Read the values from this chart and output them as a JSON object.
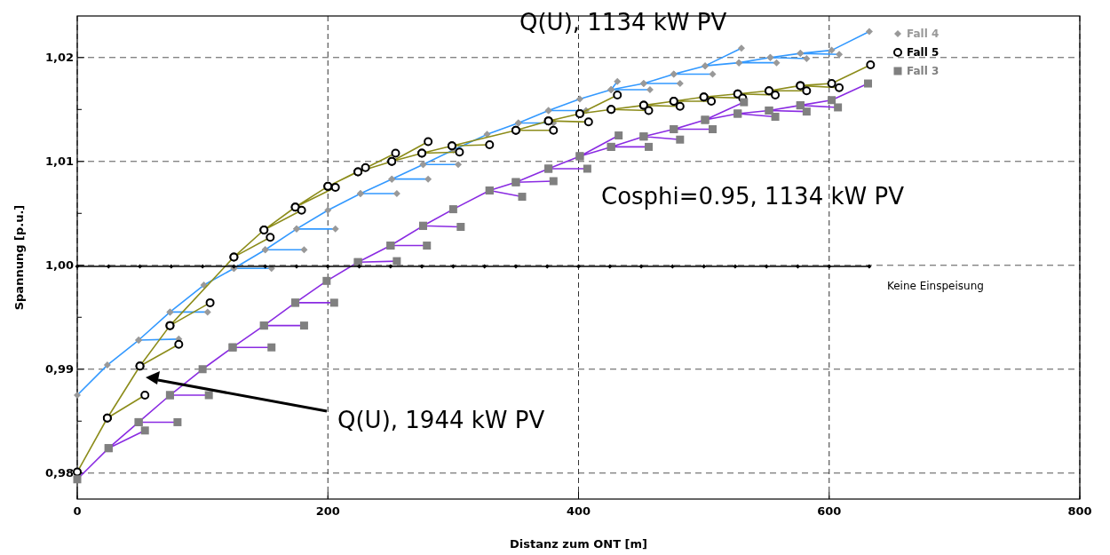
{
  "chart_data": {
    "type": "line",
    "xlabel": "Distanz zum ONT [m]",
    "ylabel": "Spannung [p.u.]",
    "xlim": [
      0,
      800
    ],
    "xticks": [
      0,
      200,
      400,
      600,
      800
    ],
    "ylim": [
      0.9775,
      1.024
    ],
    "yticks": [
      {
        "value": 0.98,
        "label": "0,98"
      },
      {
        "value": 0.985,
        "label": null
      },
      {
        "value": 0.99,
        "label": "0,99"
      },
      {
        "value": 0.995,
        "label": null
      },
      {
        "value": 1.0,
        "label": "1,00"
      },
      {
        "value": 1.005,
        "label": null
      },
      {
        "value": 1.01,
        "label": "1,01"
      },
      {
        "value": 1.015,
        "label": null
      },
      {
        "value": 1.02,
        "label": "1,02"
      }
    ],
    "grid": true,
    "legend": "top right",
    "line_style": "solid",
    "annotations": [
      "Q(U), 1134 kW PV",
      "Cosphi=0.95, 1134 kW PV",
      "Q(U), 1944 kW PV"
    ],
    "series": [
      {
        "name": "Fall 4",
        "color": "#3399ff",
        "marker": "diamond",
        "x": [
          0,
          24,
          49,
          74,
          101,
          125,
          150,
          175,
          200,
          226,
          251,
          276,
          300,
          327,
          352,
          376,
          401,
          426,
          452,
          476,
          501,
          528,
          553,
          577,
          602,
          632,
          577,
          608,
          553,
          582,
          528,
          558,
          501,
          530,
          476,
          507,
          452,
          481,
          426,
          457,
          426,
          431,
          376,
          406,
          352,
          380,
          276,
          304,
          251,
          280,
          226,
          255,
          175,
          206,
          150,
          181,
          125,
          155,
          74,
          104,
          49,
          81
        ],
        "values": [
          0.9875,
          0.9904,
          0.9928,
          0.9955,
          0.9981,
          0.9997,
          1.0015,
          1.0035,
          1.0053,
          1.0069,
          1.0083,
          1.0097,
          1.0111,
          1.0126,
          1.0137,
          1.0149,
          1.016,
          1.0169,
          1.0175,
          1.0184,
          1.0192,
          1.0195,
          1.02,
          1.0204,
          1.0207,
          1.0225,
          1.0204,
          1.0203,
          1.02,
          1.0199,
          1.0195,
          1.0195,
          1.0192,
          1.0209,
          1.0184,
          1.0184,
          1.0175,
          1.0175,
          1.0169,
          1.0169,
          1.0169,
          1.0177,
          1.0149,
          1.0149,
          1.0137,
          1.0137,
          1.0097,
          1.0097,
          1.0083,
          1.0083,
          1.0069,
          1.0069,
          1.0035,
          1.0035,
          1.0015,
          1.0015,
          0.9997,
          0.9997,
          0.9955,
          0.9955,
          0.9928,
          0.9929
        ],
        "colors": [
          "#999999",
          "#999999",
          "#999999",
          "#999999",
          "#999999",
          "#999999",
          "#999999",
          "#999999",
          "#999999",
          "#999999",
          "#999999",
          "#999999",
          "#999999",
          "#999999",
          "#999999",
          "#999999",
          "#999999",
          "#999999",
          "#999999",
          "#999999",
          "#999999",
          "#999999",
          "#999999",
          "#999999",
          "#999999",
          "#999999",
          "#999999",
          "#999999",
          "#999999",
          "#999999",
          "#999999",
          "#999999",
          "#999999",
          "#999999",
          "#999999",
          "#999999",
          "#999999",
          "#999999",
          "#999999",
          "#999999",
          "#999999",
          "#999999",
          "#999999",
          "#999999",
          "#999999",
          "#999999",
          "#999999",
          "#999999",
          "#999999",
          "#999999",
          "#999999",
          "#999999",
          "#999999",
          "#999999",
          "#999999",
          "#999999",
          "#999999",
          "#999999",
          "#999999",
          "#999999",
          "#999999",
          "#999999"
        ]
      },
      {
        "name": "Fall 5",
        "color": "#8c8c1a",
        "marker": "circle",
        "x": [
          0,
          24,
          50,
          74,
          125,
          149,
          174,
          200,
          224,
          251,
          275,
          299,
          350,
          376,
          401,
          426,
          452,
          476,
          500,
          527,
          552,
          577,
          602,
          633,
          577,
          608,
          552,
          582,
          527,
          557,
          500,
          531,
          476,
          506,
          452,
          481,
          426,
          456,
          401,
          431,
          376,
          408,
          350,
          380,
          299,
          329,
          275,
          305,
          251,
          280,
          224,
          254,
          200,
          230,
          174,
          206,
          149,
          179,
          125,
          154,
          74,
          106,
          50,
          81,
          24,
          54
        ],
        "values": [
          0.9801,
          0.9853,
          0.9903,
          0.9942,
          1.0008,
          1.0034,
          1.0056,
          1.0076,
          1.009,
          1.01,
          1.0108,
          1.0115,
          1.013,
          1.0139,
          1.0146,
          1.015,
          1.0154,
          1.0158,
          1.0162,
          1.0165,
          1.0168,
          1.0173,
          1.0175,
          1.0193,
          1.0173,
          1.0171,
          1.0168,
          1.0168,
          1.0165,
          1.0164,
          1.0162,
          1.0161,
          1.0158,
          1.0158,
          1.0154,
          1.0153,
          1.015,
          1.0149,
          1.0146,
          1.0164,
          1.0139,
          1.0138,
          1.013,
          1.013,
          1.0115,
          1.0116,
          1.0108,
          1.0109,
          1.01,
          1.0119,
          1.009,
          1.0108,
          1.0076,
          1.0094,
          1.0056,
          1.0075,
          1.0034,
          1.0053,
          1.0008,
          1.0027,
          0.9942,
          0.9964,
          0.9903,
          0.9924,
          0.9853,
          0.9875
        ],
        "colors": [
          "#000000",
          "#000000",
          "#000000",
          "#000000",
          "#000000",
          "#000000",
          "#000000",
          "#000000",
          "#000000",
          "#000000",
          "#000000",
          "#000000",
          "#000000",
          "#000000",
          "#000000",
          "#000000",
          "#000000",
          "#000000",
          "#000000",
          "#000000",
          "#000000",
          "#000000",
          "#000000",
          "#000000",
          "#000000",
          "#000000",
          "#000000",
          "#000000",
          "#000000",
          "#000000",
          "#000000",
          "#000000",
          "#000000",
          "#000000",
          "#000000",
          "#000000",
          "#000000",
          "#000000",
          "#000000",
          "#000000",
          "#000000",
          "#000000",
          "#000000",
          "#000000",
          "#000000",
          "#000000",
          "#000000",
          "#000000",
          "#000000",
          "#000000",
          "#000000",
          "#000000",
          "#000000",
          "#000000",
          "#000000",
          "#000000",
          "#000000",
          "#000000",
          "#000000",
          "#000000",
          "#000000",
          "#000000",
          "#000000",
          "#000000",
          "#000000",
          "#000000"
        ]
      },
      {
        "name": "Fall 3",
        "color": "#8a2be2",
        "marker": "square",
        "x": [
          0,
          25,
          49,
          74,
          100,
          124,
          149,
          174,
          199,
          224,
          250,
          276,
          300,
          329,
          350,
          376,
          401,
          426,
          452,
          476,
          501,
          527,
          552,
          577,
          602,
          631,
          577,
          607,
          552,
          582,
          527,
          557,
          501,
          532,
          476,
          507,
          452,
          481,
          426,
          456,
          401,
          432,
          376,
          407,
          350,
          380,
          329,
          355,
          276,
          306,
          250,
          279,
          224,
          255,
          174,
          205,
          149,
          181,
          124,
          155,
          74,
          105,
          49,
          80,
          25,
          54
        ],
        "values": [
          0.9794,
          0.9824,
          0.9849,
          0.9875,
          0.99,
          0.9921,
          0.9942,
          0.9964,
          0.9985,
          1.0003,
          1.0019,
          1.0038,
          1.0054,
          1.0072,
          1.008,
          1.0093,
          1.0105,
          1.0114,
          1.0124,
          1.0131,
          1.014,
          1.0146,
          1.0149,
          1.0154,
          1.0159,
          1.0175,
          1.0154,
          1.0152,
          1.0149,
          1.0148,
          1.0146,
          1.0143,
          1.014,
          1.0157,
          1.0131,
          1.0131,
          1.0124,
          1.0121,
          1.0114,
          1.0114,
          1.0105,
          1.0125,
          1.0093,
          1.0093,
          1.008,
          1.0081,
          1.0072,
          1.0066,
          1.0038,
          1.0037,
          1.0019,
          1.0019,
          1.0003,
          1.0004,
          0.9964,
          0.9964,
          0.9942,
          0.9942,
          0.9921,
          0.9921,
          0.9875,
          0.9875,
          0.9849,
          0.9849,
          0.9824,
          0.9841
        ],
        "colors": [
          "#808080",
          "#808080",
          "#808080",
          "#808080",
          "#808080",
          "#808080",
          "#808080",
          "#808080",
          "#808080",
          "#808080",
          "#808080",
          "#808080",
          "#808080",
          "#808080",
          "#808080",
          "#808080",
          "#808080",
          "#808080",
          "#808080",
          "#808080",
          "#808080",
          "#808080",
          "#808080",
          "#808080",
          "#808080",
          "#808080",
          "#808080",
          "#808080",
          "#808080",
          "#808080",
          "#808080",
          "#808080",
          "#808080",
          "#808080",
          "#808080",
          "#808080",
          "#808080",
          "#808080",
          "#808080",
          "#808080",
          "#808080",
          "#808080",
          "#808080",
          "#808080",
          "#808080",
          "#808080",
          "#808080",
          "#808080",
          "#808080",
          "#808080",
          "#808080",
          "#808080",
          "#808080",
          "#808080",
          "#808080",
          "#808080",
          "#808080",
          "#808080",
          "#808080",
          "#808080",
          "#808080",
          "#808080",
          "#808080",
          "#808080",
          "#808080",
          "#808080"
        ]
      },
      {
        "name": "Keine Einspeisung",
        "color": "#000000",
        "marker": "diamond",
        "x": [
          0,
          25,
          50,
          75,
          100,
          125,
          150,
          175,
          200,
          225,
          250,
          275,
          300,
          325,
          350,
          375,
          400,
          425,
          450,
          475,
          500,
          525,
          550,
          575,
          600,
          632
        ],
        "values": [
          0.9999,
          0.9999,
          0.9999,
          0.9999,
          0.9999,
          0.9999,
          0.9999,
          0.9999,
          0.9999,
          0.9999,
          0.9999,
          0.9999,
          0.9999,
          0.9999,
          0.9999,
          0.9999,
          0.9999,
          0.9999,
          0.9999,
          0.9999,
          0.9999,
          0.9999,
          0.9999,
          0.9999,
          0.9999,
          0.9999
        ]
      }
    ]
  }
}
